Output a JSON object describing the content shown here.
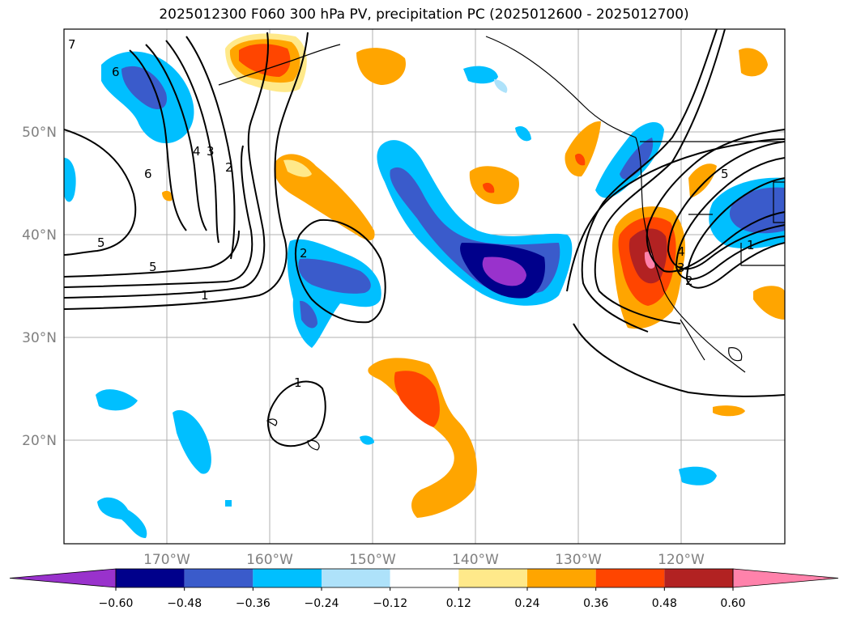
{
  "title": "2025012300 F060 300 hPa PV, precipitation PC (2025012600 - 2025012700)",
  "map": {
    "lon_labels": [
      "170°W",
      "160°W",
      "150°W",
      "140°W",
      "130°W",
      "120°W"
    ],
    "lat_labels": [
      "50°N",
      "40°N",
      "30°N",
      "20°N"
    ],
    "contour_labels": [
      "7",
      "6",
      "6",
      "4",
      "3",
      "2",
      "5",
      "5",
      "1",
      "2",
      "1",
      "5",
      "4",
      "3",
      "2",
      "1"
    ]
  },
  "colorbar": {
    "ticks": [
      "−0.60",
      "−0.48",
      "−0.36",
      "−0.24",
      "−0.12",
      "0.12",
      "0.24",
      "0.36",
      "0.48",
      "0.60"
    ],
    "colors": [
      "#9932CC",
      "#00008B",
      "#3A5BCB",
      "#00BFFF",
      "#AEE2FA",
      "#FFFFFF",
      "#FFE98A",
      "#FFA500",
      "#FF4500",
      "#B22222",
      "#FF82AB"
    ]
  }
}
